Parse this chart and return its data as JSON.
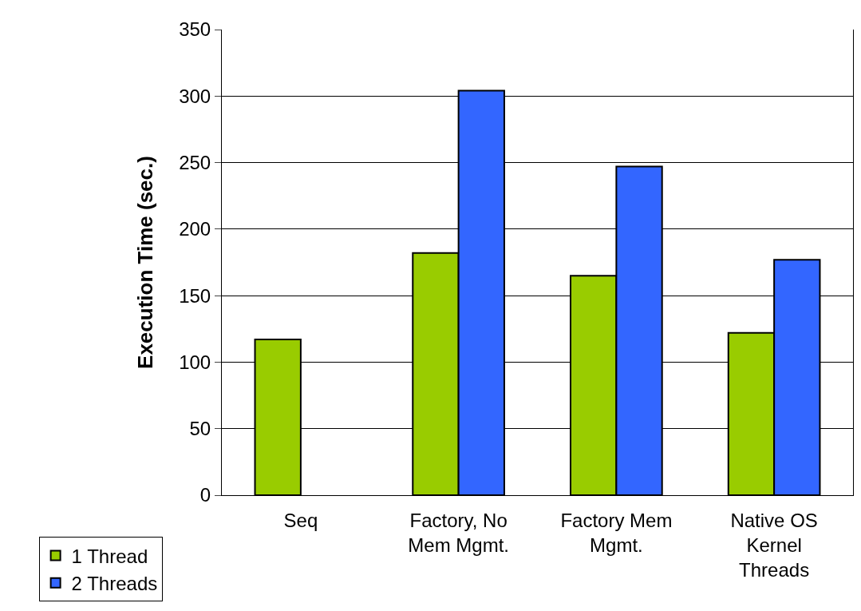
{
  "chart_data": {
    "type": "bar",
    "ylabel": "Execution Time (sec.)",
    "categories": [
      "Seq",
      "Factory, No Mem Mgmt.",
      "Factory Mem Mgmt.",
      "Native OS Kernel Threads"
    ],
    "series": [
      {
        "name": "1 Thread",
        "color": "#99cc00",
        "values": [
          117,
          182,
          165,
          122
        ]
      },
      {
        "name": "2 Threads",
        "color": "#3366ff",
        "values": [
          null,
          304,
          247,
          177
        ]
      }
    ],
    "ylim": [
      0,
      350
    ],
    "yticks": [
      0,
      50,
      100,
      150,
      200,
      250,
      300,
      350
    ],
    "grid": "y",
    "legend": "bottom left"
  }
}
